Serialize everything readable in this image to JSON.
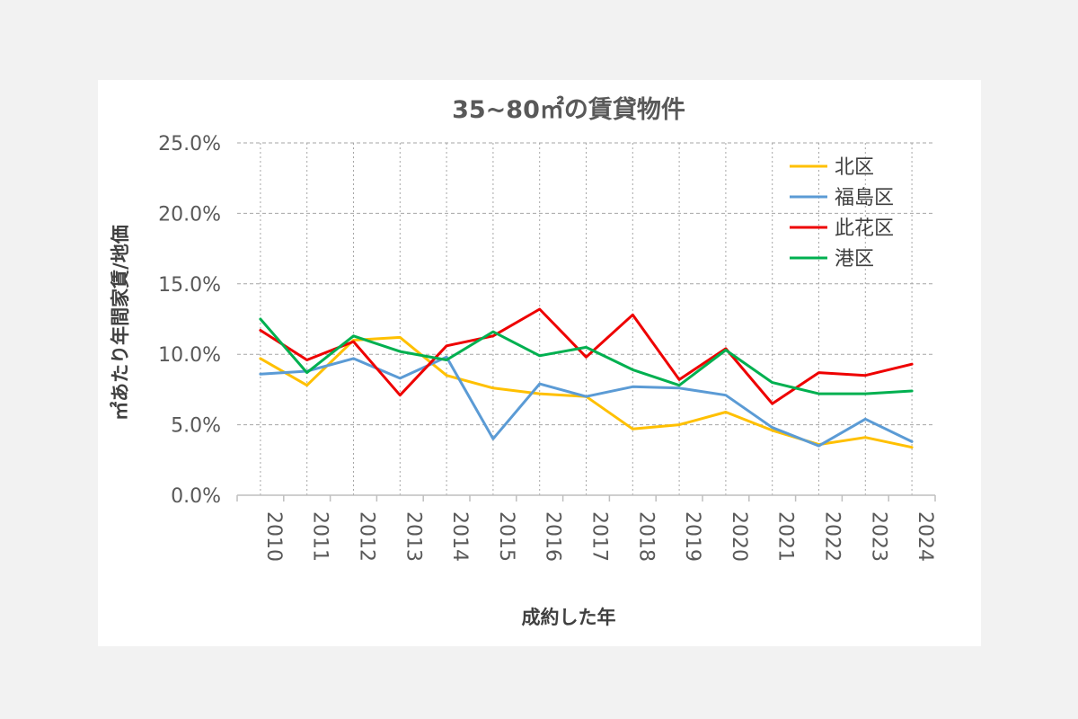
{
  "chart_data": {
    "type": "line",
    "title": "35~80㎡の賃貸物件",
    "xlabel": "成約した年",
    "ylabel": "㎡あたり年間家賃/地価",
    "categories": [
      "2010",
      "2011",
      "2012",
      "2013",
      "2014",
      "2015",
      "2016",
      "2017",
      "2018",
      "2019",
      "2020",
      "2021",
      "2022",
      "2023",
      "2024"
    ],
    "ylim": [
      0,
      25
    ],
    "yticks": [
      "0.0%",
      "5.0%",
      "10.0%",
      "15.0%",
      "20.0%",
      "25.0%"
    ],
    "grid": true,
    "legend_position": "top-right",
    "series": [
      {
        "name": "北区",
        "color": "#FFC000",
        "values": [
          9.7,
          7.8,
          11.0,
          11.2,
          8.5,
          7.6,
          7.2,
          7.0,
          4.7,
          5.0,
          5.9,
          4.6,
          3.6,
          4.1,
          3.4
        ]
      },
      {
        "name": "福島区",
        "color": "#5B9BD5",
        "values": [
          8.6,
          8.8,
          9.7,
          8.3,
          9.8,
          4.0,
          7.9,
          7.0,
          7.7,
          7.6,
          7.1,
          4.8,
          3.5,
          5.4,
          3.8
        ]
      },
      {
        "name": "此花区",
        "color": "#EE0000",
        "values": [
          11.7,
          9.6,
          10.9,
          7.1,
          10.6,
          11.3,
          13.2,
          9.8,
          12.8,
          8.2,
          10.4,
          6.5,
          8.7,
          8.5,
          9.3
        ]
      },
      {
        "name": "港区",
        "color": "#00B050",
        "values": [
          12.5,
          8.7,
          11.3,
          10.2,
          9.6,
          11.6,
          9.9,
          10.5,
          8.9,
          7.8,
          10.3,
          8.0,
          7.2,
          7.2,
          7.4
        ]
      }
    ]
  }
}
